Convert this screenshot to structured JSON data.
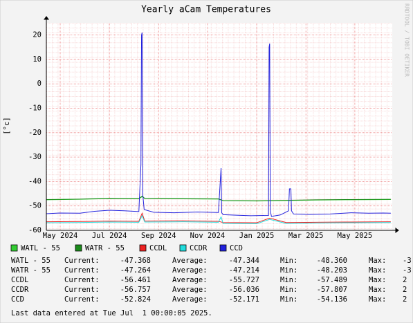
{
  "chart_data": {
    "type": "line",
    "title": "Yearly aCam Temperatures",
    "y_label": "[°c]",
    "watermark": "RRDTOOL / TOBI OETIKER",
    "xlim": [
      2024.286,
      2025.46
    ],
    "xticks": [
      {
        "value": 2024.333,
        "label": "May 2024"
      },
      {
        "value": 2024.5,
        "label": "Jul 2024"
      },
      {
        "value": 2024.667,
        "label": "Sep 2024"
      },
      {
        "value": 2024.833,
        "label": "Nov 2024"
      },
      {
        "value": 2025.0,
        "label": "Jan 2025"
      },
      {
        "value": 2025.167,
        "label": "Mar 2025"
      },
      {
        "value": 2025.333,
        "label": "May 2025"
      }
    ],
    "ylim": [
      -60,
      25
    ],
    "yticks": [
      -60,
      -50,
      -40,
      -30,
      -20,
      -10,
      0,
      10,
      20
    ],
    "grid": true,
    "series": [
      {
        "name": "WATL - 55",
        "color": "#33cc33",
        "x": [
          2024.286,
          2024.4,
          2024.5,
          2024.6,
          2024.611,
          2024.62,
          2024.75,
          2024.87,
          2024.886,
          2025.0,
          2025.1,
          2025.2,
          2025.3,
          2025.455
        ],
        "values": [
          -47.5,
          -47.3,
          -47.0,
          -47.1,
          -46.2,
          -47.0,
          -47.1,
          -47.2,
          -47.9,
          -48.0,
          -47.8,
          -47.6,
          -47.5,
          -47.4
        ]
      },
      {
        "name": "WATR - 55",
        "color": "#1a8a1a",
        "x": [
          2024.286,
          2024.4,
          2024.5,
          2024.6,
          2024.611,
          2024.62,
          2024.75,
          2024.87,
          2024.886,
          2025.0,
          2025.1,
          2025.2,
          2025.3,
          2025.455
        ],
        "values": [
          -47.4,
          -47.2,
          -46.9,
          -47.0,
          -46.0,
          -46.9,
          -47.0,
          -47.1,
          -47.8,
          -47.9,
          -47.7,
          -47.5,
          -47.4,
          -47.3
        ]
      },
      {
        "name": "CCDL",
        "color": "#ee2222",
        "x": [
          2024.286,
          2024.4,
          2024.5,
          2024.6,
          2024.611,
          2024.62,
          2024.75,
          2024.87,
          2024.886,
          2025.0,
          2025.044,
          2025.1,
          2025.2,
          2025.3,
          2025.455
        ],
        "values": [
          -56.5,
          -56.4,
          -56.2,
          -56.3,
          -53.0,
          -56.2,
          -56.1,
          -56.3,
          -56.8,
          -56.9,
          -55.0,
          -56.8,
          -56.7,
          -56.6,
          -56.5
        ]
      },
      {
        "name": "CCDR",
        "color": "#22dddd",
        "x": [
          2024.286,
          2024.4,
          2024.5,
          2024.6,
          2024.611,
          2024.62,
          2024.75,
          2024.87,
          2024.879,
          2024.886,
          2025.0,
          2025.044,
          2025.1,
          2025.2,
          2025.3,
          2025.455
        ],
        "values": [
          -56.9,
          -56.8,
          -56.6,
          -56.7,
          -54.0,
          -56.6,
          -56.5,
          -56.7,
          -54.5,
          -57.2,
          -57.3,
          -55.5,
          -57.2,
          -57.0,
          -56.9,
          -56.8
        ]
      },
      {
        "name": "CCD",
        "color": "#2222dd",
        "x": [
          2024.286,
          2024.33,
          2024.4,
          2024.45,
          2024.5,
          2024.55,
          2024.6,
          2024.607,
          2024.609,
          2024.611,
          2024.613,
          2024.618,
          2024.65,
          2024.72,
          2024.8,
          2024.87,
          2024.879,
          2024.881,
          2024.886,
          2024.93,
          2024.98,
          2025.04,
          2025.042,
          2025.044,
          2025.046,
          2025.05,
          2025.08,
          2025.108,
          2025.111,
          2025.116,
          2025.118,
          2025.125,
          2025.18,
          2025.25,
          2025.32,
          2025.38,
          2025.43,
          2025.455
        ],
        "values": [
          -53.2,
          -52.9,
          -53.0,
          -52.2,
          -51.8,
          -52.0,
          -52.3,
          -33,
          20,
          21,
          -45,
          -51.5,
          -52.6,
          -52.8,
          -52.5,
          -52.7,
          -34.5,
          -52.8,
          -53.6,
          -53.8,
          -54.0,
          -53.9,
          15,
          16.5,
          -52,
          -54.3,
          -53.7,
          -52,
          -43,
          -43,
          -52,
          -53.3,
          -53.5,
          -53.3,
          -52.8,
          -53.0,
          -52.9,
          -53.0
        ]
      }
    ]
  },
  "stats": {
    "rows": [
      [
        "WATL - 55",
        "Current:",
        "-47.368",
        "Average:",
        "-47.344",
        "Min:",
        "-48.360",
        "Max:",
        "-3"
      ],
      [
        "WATR - 55",
        "Current:",
        "-47.264",
        "Average:",
        "-47.214",
        "Min:",
        "-48.203",
        "Max:",
        "-3"
      ],
      [
        "CCDL",
        "Current:",
        "-56.461",
        "Average:",
        "-55.727",
        "Min:",
        "-57.489",
        "Max:",
        "2"
      ],
      [
        "CCDR",
        "Current:",
        "-56.757",
        "Average:",
        "-56.036",
        "Min:",
        "-57.807",
        "Max:",
        "2"
      ],
      [
        "CCD",
        "Current:",
        "-52.824",
        "Average:",
        "-52.171",
        "Min:",
        "-54.136",
        "Max:",
        "2"
      ]
    ]
  },
  "footer": "Last data entered at Tue Jul  1 00:00:05 2025."
}
